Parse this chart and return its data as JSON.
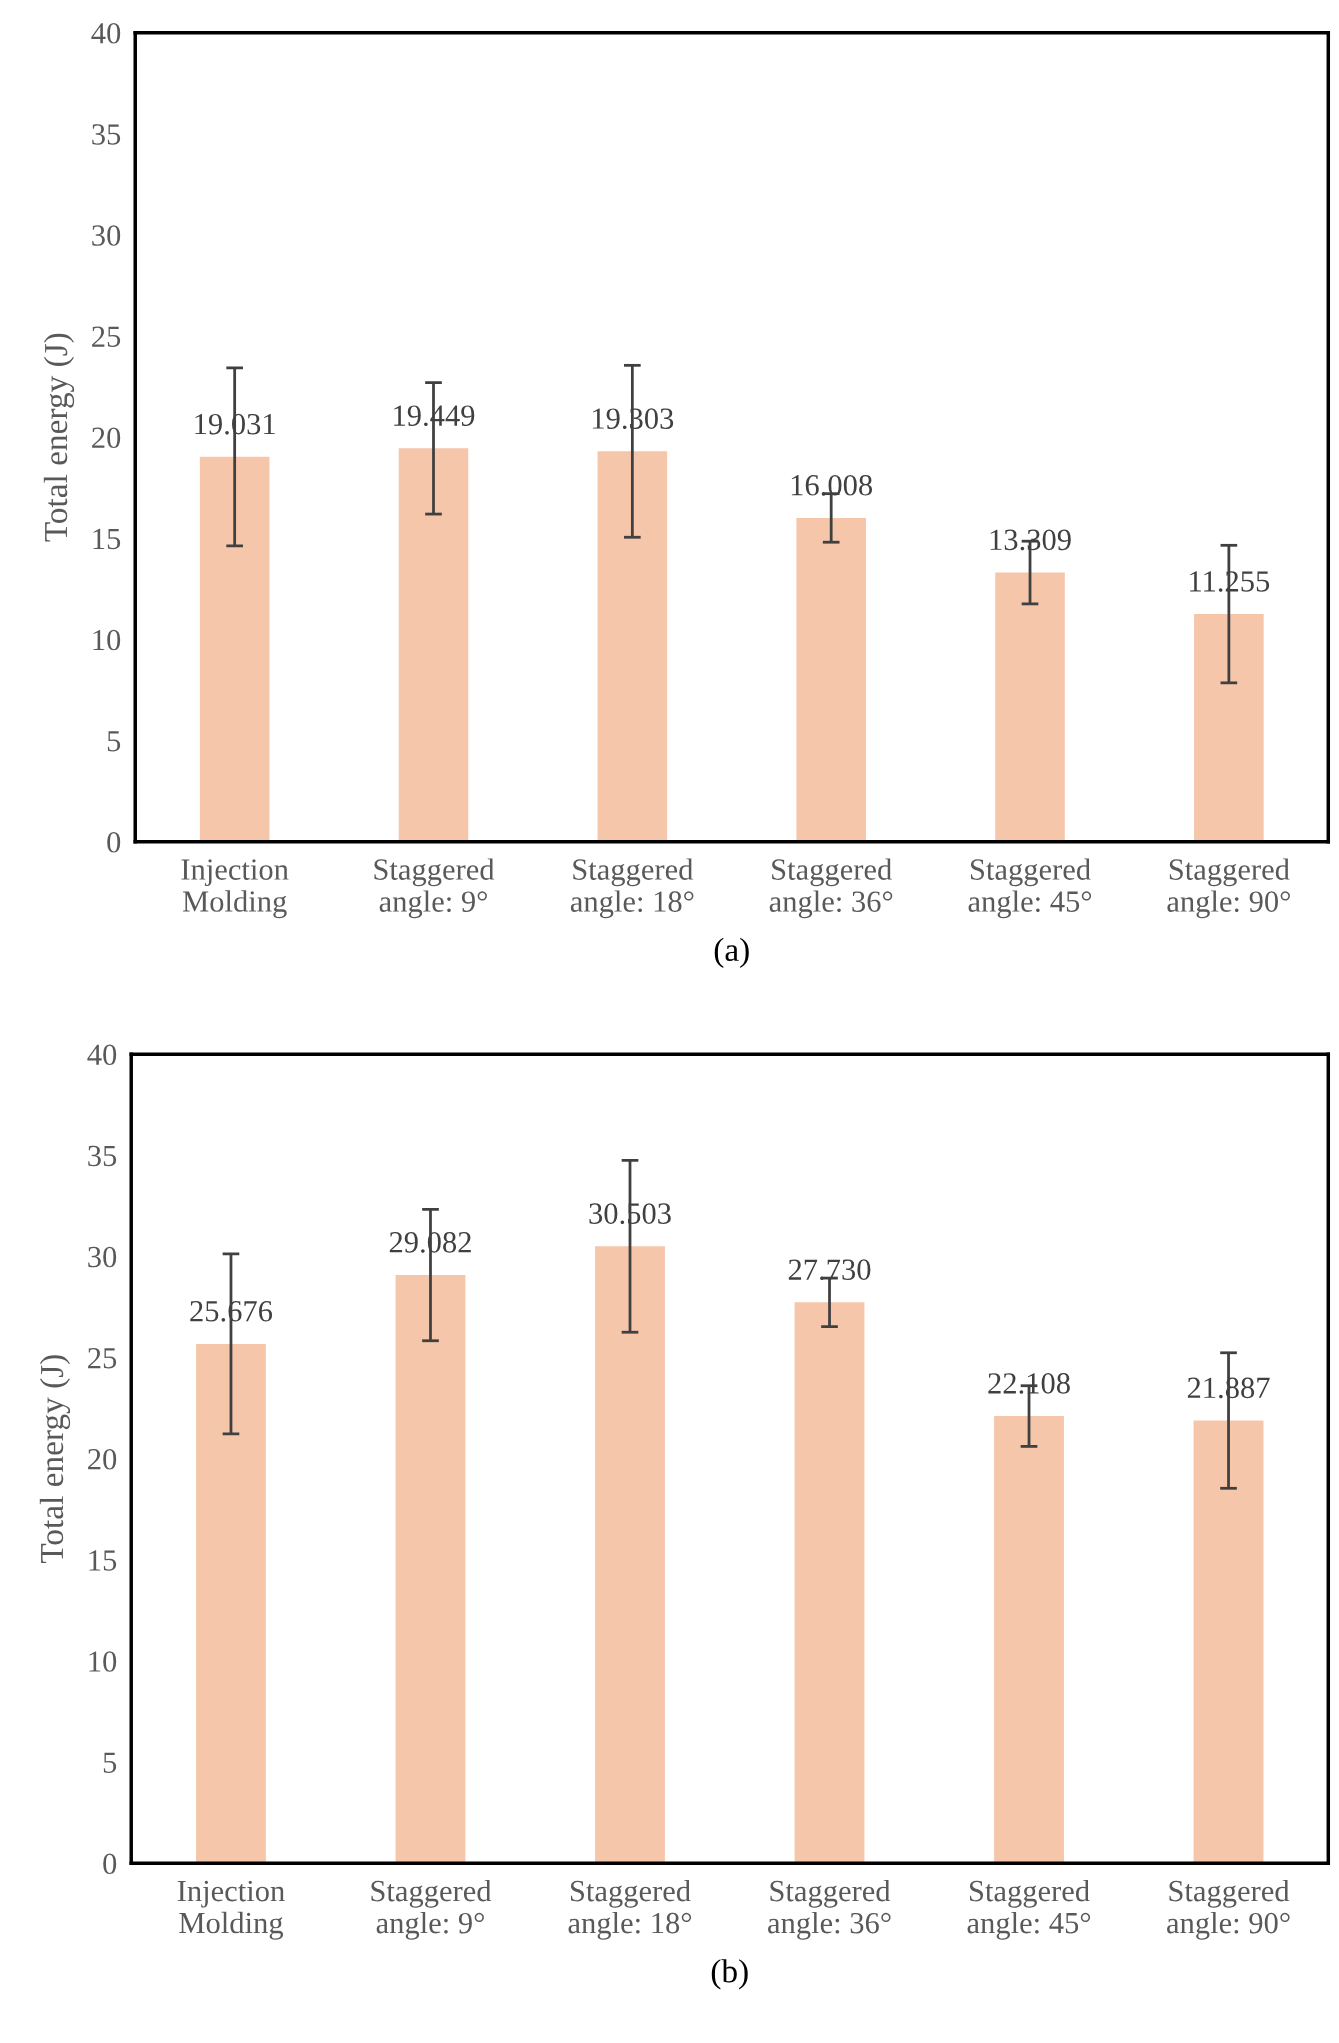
{
  "chart_data": [
    {
      "type": "bar",
      "xlabel": "(a)",
      "ylabel": "Total energy (J)",
      "categories": [
        "Injection\nMolding",
        "Staggered\nangle: 9°",
        "Staggered\nangle: 18°",
        "Staggered\nangle: 36°",
        "Staggered\nangle: 45°",
        "Staggered\nangle: 90°"
      ],
      "values": [
        19.031,
        19.449,
        19.303,
        16.008,
        13.309,
        11.255
      ],
      "errors": [
        4.4,
        3.25,
        4.25,
        1.2,
        1.55,
        3.4
      ],
      "value_labels": [
        "19.031",
        "19.449",
        "19.303",
        "16.008",
        "13.309",
        "11.255"
      ],
      "color": "#f5c6aa",
      "ylim": [
        0,
        40
      ],
      "yticks": [
        0,
        5,
        10,
        15,
        20,
        25,
        30,
        35,
        40
      ],
      "grid": false,
      "legend": false
    },
    {
      "type": "bar",
      "xlabel": "(b)",
      "ylabel": "Total energy (J)",
      "categories": [
        "Injection\nMolding",
        "Staggered\nangle: 9°",
        "Staggered\nangle: 18°",
        "Staggered\nangle: 36°",
        "Staggered\nangle: 45°",
        "Staggered\nangle: 90°"
      ],
      "values": [
        25.676,
        29.082,
        30.503,
        27.73,
        22.108,
        21.887
      ],
      "errors": [
        4.45,
        3.25,
        4.25,
        1.2,
        1.5,
        3.35
      ],
      "value_labels": [
        "25.676",
        "29.082",
        "30.503",
        "27.730",
        "22.108",
        "21.887"
      ],
      "color": "#f5c6aa",
      "ylim": [
        0,
        40
      ],
      "yticks": [
        0,
        5,
        10,
        15,
        20,
        25,
        30,
        35,
        40
      ],
      "grid": false,
      "legend": false
    }
  ]
}
